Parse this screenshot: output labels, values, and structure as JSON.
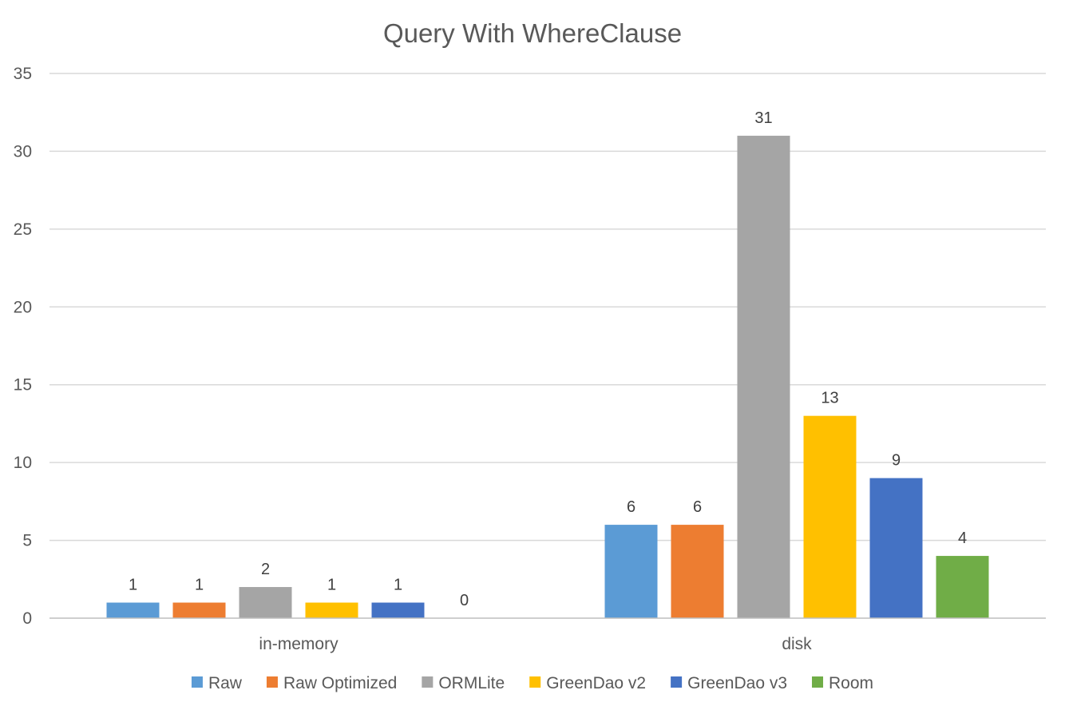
{
  "chart_data": {
    "type": "bar",
    "title": "Query With WhereClause",
    "xlabel": "",
    "ylabel": "",
    "categories": [
      "in-memory",
      "disk"
    ],
    "series": [
      {
        "name": "Raw",
        "values": [
          1,
          6
        ],
        "color": "#5b9bd5"
      },
      {
        "name": "Raw Optimized",
        "values": [
          1,
          6
        ],
        "color": "#ed7d31"
      },
      {
        "name": "ORMLite",
        "values": [
          2,
          31
        ],
        "color": "#a5a5a5"
      },
      {
        "name": "GreenDao v2",
        "values": [
          1,
          13
        ],
        "color": "#ffc000"
      },
      {
        "name": "GreenDao v3",
        "values": [
          1,
          9
        ],
        "color": "#4472c4"
      },
      {
        "name": "Room",
        "values": [
          0,
          4
        ],
        "color": "#70ad47"
      }
    ],
    "ylim": [
      0,
      35
    ],
    "yticks": [
      0,
      5,
      10,
      15,
      20,
      25,
      30,
      35
    ],
    "grid": true,
    "data_labels": true,
    "legend_position": "bottom"
  }
}
